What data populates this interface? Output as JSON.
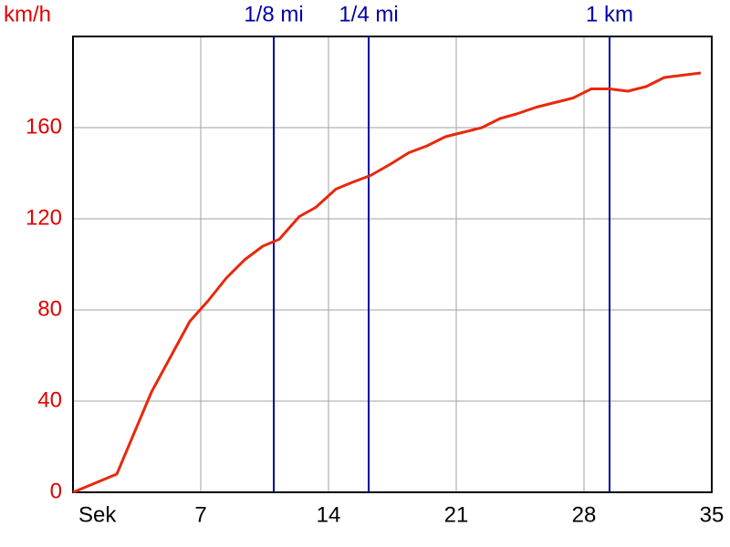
{
  "chart_data": {
    "type": "line",
    "y_label": "km/h",
    "x": [
      0,
      2.4,
      4.3,
      6.4,
      7.4,
      8.4,
      9.4,
      10.4,
      11.3,
      12.4,
      13.3,
      14.4,
      15.3,
      16.3,
      17.4,
      18.4,
      19.4,
      20.4,
      21.4,
      22.4,
      23.4,
      24.3,
      25.4,
      26.4,
      27.4,
      28.4,
      29.4,
      30.4,
      31.4,
      32.4,
      33.4,
      34.4
    ],
    "series": [
      {
        "color": "#e8280c",
        "values": [
          0,
          8,
          44,
          75,
          84,
          94,
          102,
          108,
          111,
          121,
          125,
          133,
          136,
          139,
          144,
          149,
          152,
          156,
          158,
          160,
          164,
          166,
          169,
          171,
          173,
          177,
          177,
          176,
          178,
          182,
          183,
          184
        ]
      }
    ],
    "xlim": [
      0,
      35
    ],
    "xticks": [
      {
        "value": 0,
        "label": "Sek"
      },
      7,
      14,
      21,
      28,
      35
    ],
    "ylim": [
      0,
      200
    ],
    "yticks": [
      0,
      40,
      80,
      120,
      160
    ],
    "grid": true,
    "markers": [
      {
        "value": 11,
        "label": "1/8 mi"
      },
      {
        "value": 16.2,
        "label": "1/4 mi"
      },
      {
        "value": 29.4,
        "label": "1 km"
      }
    ],
    "marker_color": "#0000a8",
    "ytick_color": "#e00000"
  }
}
